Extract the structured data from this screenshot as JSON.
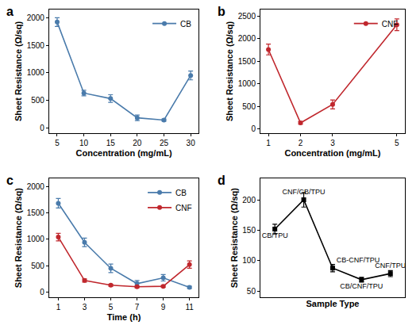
{
  "chart_data": [
    {
      "type": "line",
      "title": "a",
      "xlabel": "Concentration (mg/mL)",
      "ylabel": "Sheet Resistance (Ω/sq)",
      "x": [
        5,
        10,
        15,
        20,
        25,
        30
      ],
      "series": [
        {
          "name": "CB",
          "color": "#4a7bab",
          "marker": "circle",
          "line_style": "solid",
          "values": [
            1920,
            630,
            530,
            180,
            140,
            950
          ],
          "error": [
            80,
            50,
            70,
            50,
            20,
            80
          ]
        }
      ],
      "xlim": [
        3.5,
        31.5
      ],
      "xticks": [
        5,
        10,
        15,
        20,
        25,
        30
      ],
      "ylim": [
        -100,
        2150
      ],
      "yticks": [
        0,
        500,
        1000,
        1500,
        2000
      ],
      "legend": "upper right"
    },
    {
      "type": "line",
      "title": "b",
      "xlabel": "Concentration (mg/mL)",
      "ylabel": "Sheet Resistance (Ω/sq)",
      "x": [
        1,
        2,
        3,
        5
      ],
      "series": [
        {
          "name": "CNF",
          "color": "#c0272d",
          "marker": "circle",
          "line_style": "solid",
          "values": [
            1760,
            130,
            540,
            2310
          ],
          "error": [
            120,
            30,
            100,
            130
          ]
        }
      ],
      "xlim": [
        0.75,
        5.25
      ],
      "xticks": [
        1,
        2,
        3,
        5
      ],
      "ylim": [
        -100,
        2650
      ],
      "yticks": [
        0,
        500,
        1000,
        1500,
        2000,
        2500
      ],
      "legend": "upper right"
    },
    {
      "type": "line",
      "title": "c",
      "xlabel": "Time (h)",
      "ylabel": "Sheet Resistance (Ω/sq)",
      "x": [
        1,
        3,
        5,
        7,
        9,
        11
      ],
      "series": [
        {
          "name": "CB",
          "color": "#4a7bab",
          "marker": "circle",
          "line_style": "solid",
          "values": [
            1680,
            940,
            450,
            160,
            270,
            90
          ],
          "error": [
            90,
            80,
            80,
            60,
            60,
            20
          ]
        },
        {
          "name": "CNF",
          "color": "#c0272d",
          "marker": "circle",
          "line_style": "solid",
          "values": [
            1040,
            220,
            130,
            100,
            110,
            520
          ],
          "error": [
            70,
            30,
            20,
            20,
            20,
            70
          ]
        }
      ],
      "xlim": [
        0.3,
        11.7
      ],
      "xticks": [
        1,
        3,
        5,
        7,
        9,
        11
      ],
      "ylim": [
        -100,
        2150
      ],
      "yticks": [
        0,
        500,
        1000,
        1500,
        2000
      ],
      "legend": "upper right"
    },
    {
      "type": "line",
      "title": "d",
      "xlabel": "Sample Type",
      "ylabel": "Sheet Resistance (Ω/sq)",
      "categories": [
        "CB/TPU",
        "CNF/CB/TPU",
        "CB-CNF/TPU",
        "CB/CNF/TPU",
        "CNF/TPU"
      ],
      "series": [
        {
          "color": "#000000",
          "marker": "square",
          "line_style": "solid",
          "values": [
            152,
            200,
            88,
            69,
            79
          ],
          "error": [
            8,
            12,
            6,
            4,
            5
          ]
        }
      ],
      "ylim": [
        40,
        235
      ],
      "yticks": [
        50,
        100,
        150,
        200
      ],
      "tick_labels": "y"
    }
  ]
}
